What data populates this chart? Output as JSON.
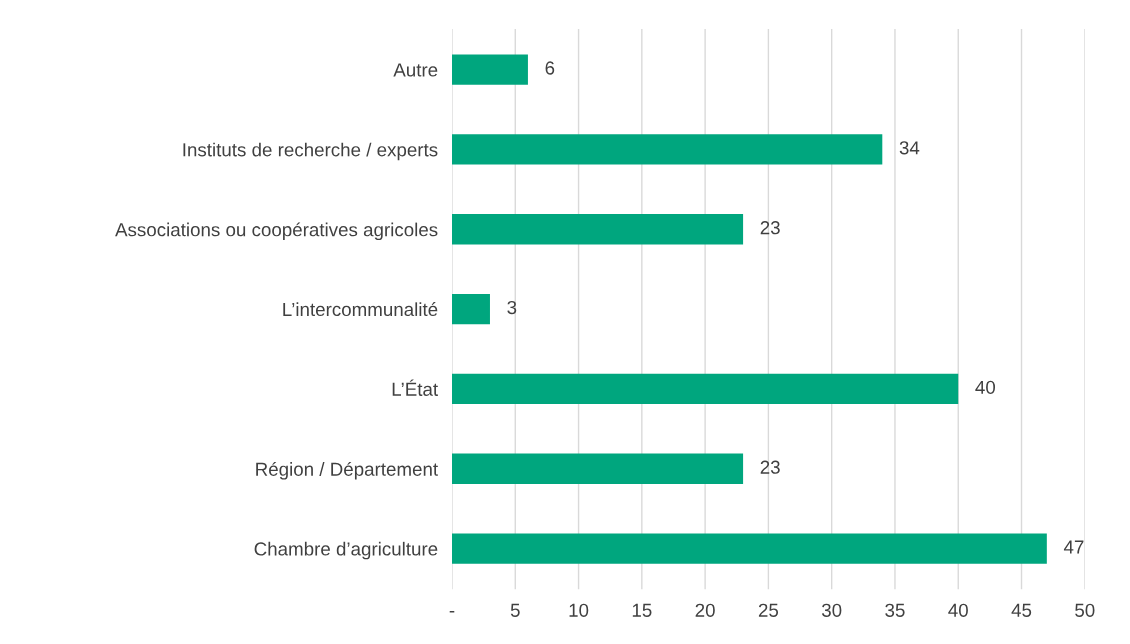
{
  "chart_data": {
    "type": "bar",
    "orientation": "horizontal",
    "categories": [
      "Autre",
      "Instituts de recherche / experts",
      "Associations ou coopératives agricoles",
      "L’intercommunalité",
      "L’État",
      "Région / Département",
      "Chambre d’agriculture"
    ],
    "values": [
      6,
      34,
      23,
      3,
      40,
      23,
      47
    ],
    "color": "#00a67e",
    "data_labels": true,
    "xlim": [
      0,
      50
    ],
    "xticks": [
      {
        "value": 0,
        "label": "-"
      },
      5,
      10,
      15,
      20,
      25,
      30,
      35,
      40,
      45,
      50
    ],
    "grid": "x"
  }
}
